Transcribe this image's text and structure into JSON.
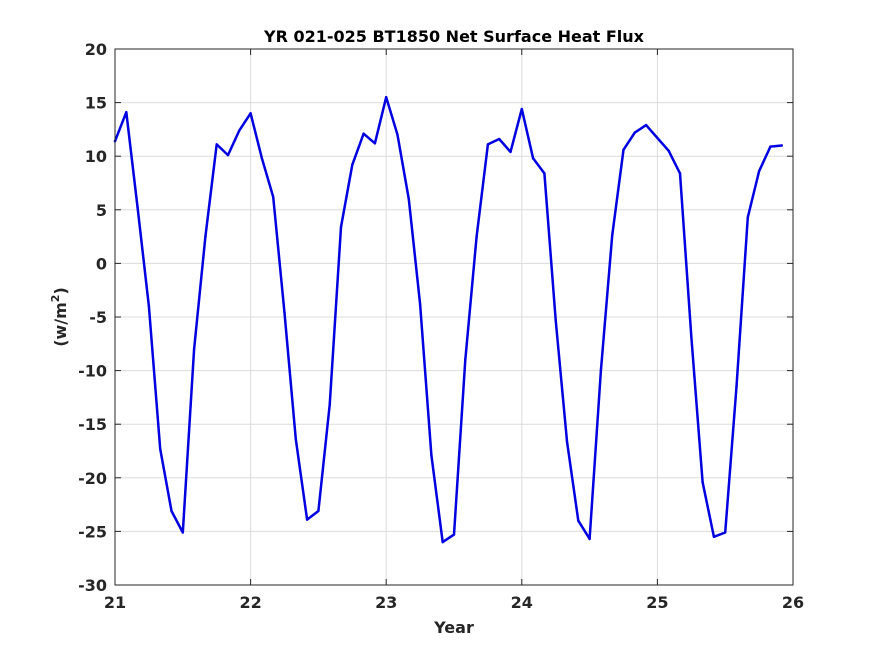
{
  "chart_data": {
    "type": "line",
    "title": "YR 021-025 BT1850 Net Surface Heat Flux",
    "xlabel": "Year",
    "ylabel_base": "(w/m",
    "ylabel_sup": "2",
    "ylabel_end": ")",
    "xlim": [
      21,
      26
    ],
    "ylim": [
      -30,
      20
    ],
    "xticks": [
      21,
      22,
      23,
      24,
      25,
      26
    ],
    "yticks": [
      -30,
      -25,
      -20,
      -15,
      -10,
      -5,
      0,
      5,
      10,
      15,
      20
    ],
    "grid": true,
    "series": [
      {
        "color": "#0000e0",
        "x": [
          21.0,
          21.083,
          21.167,
          21.25,
          21.333,
          21.417,
          21.5,
          21.583,
          21.667,
          21.75,
          21.833,
          21.917,
          22.0,
          22.083,
          22.167,
          22.25,
          22.333,
          22.417,
          22.5,
          22.583,
          22.667,
          22.75,
          22.833,
          22.917,
          23.0,
          23.083,
          23.167,
          23.25,
          23.333,
          23.417,
          23.5,
          23.583,
          23.667,
          23.75,
          23.833,
          23.917,
          24.0,
          24.083,
          24.167,
          24.25,
          24.333,
          24.417,
          24.5,
          24.583,
          24.667,
          24.75,
          24.833,
          24.917,
          25.0,
          25.083,
          25.167,
          25.25,
          25.333,
          25.417,
          25.5,
          25.583,
          25.667,
          25.75,
          25.833,
          25.917
        ],
        "y": [
          11.4,
          14.1,
          5.2,
          -4.0,
          -17.3,
          -23.1,
          -25.1,
          -8.0,
          2.5,
          11.1,
          10.1,
          12.4,
          14.0,
          9.8,
          6.2,
          -4.6,
          -16.4,
          -23.9,
          -23.1,
          -13.2,
          3.4,
          9.2,
          12.1,
          11.2,
          15.5,
          12.0,
          6.0,
          -3.8,
          -17.9,
          -26.0,
          -25.3,
          -9.0,
          2.5,
          11.1,
          11.6,
          10.4,
          14.4,
          9.8,
          8.4,
          -5.3,
          -16.6,
          -24.0,
          -25.7,
          -10.0,
          2.6,
          10.6,
          12.2,
          12.9,
          11.7,
          10.5,
          8.4,
          -6.8,
          -20.4,
          -25.5,
          -25.1,
          -11.5,
          4.3,
          8.6,
          10.9,
          11.0
        ]
      }
    ]
  }
}
